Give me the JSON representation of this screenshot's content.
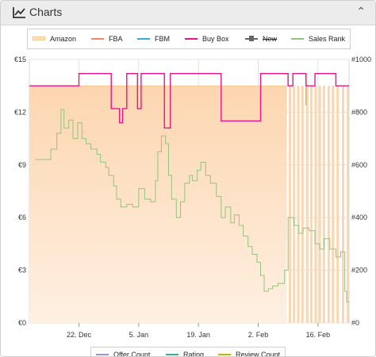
{
  "header": {
    "title": "Charts",
    "icon": "line-chart-icon",
    "collapse_icon": "chevron-up-icon"
  },
  "legend": [
    {
      "label": "Amazon",
      "color": "#f8c890",
      "style": "box"
    },
    {
      "label": "FBA",
      "color": "#f4866a",
      "style": "line"
    },
    {
      "label": "FBM",
      "color": "#3aa9e0",
      "style": "line"
    },
    {
      "label": "Buy Box",
      "color": "#e8158a",
      "style": "line"
    },
    {
      "label": "New",
      "color": "#666666",
      "style": "marker",
      "disabled": true
    },
    {
      "label": "Sales Rank",
      "color": "#93c47d",
      "style": "line"
    }
  ],
  "legend_bottom": [
    {
      "label": "Offer Count",
      "color": "#9b8fd6"
    },
    {
      "label": "Rating",
      "color": "#3aa9a0"
    },
    {
      "label": "Review Count",
      "color": "#c8b400"
    }
  ],
  "chart_data": {
    "type": "line",
    "y_left": {
      "ticks": [
        "€0",
        "€3",
        "€6",
        "€9",
        "€12",
        "€15"
      ],
      "range": [
        0,
        15
      ]
    },
    "y_right": {
      "ticks": [
        "#0",
        "#200",
        "#400",
        "#600",
        "#800",
        "#1000"
      ],
      "range": [
        0,
        1000
      ]
    },
    "x_ticks": [
      {
        "label": "22. Dec",
        "t": 5.0
      },
      {
        "label": "5. Jan",
        "t": 15.0
      },
      {
        "label": "19. Jan",
        "t": 25.0
      },
      {
        "label": "2. Feb",
        "t": 35.0
      },
      {
        "label": "16. Feb",
        "t": 45.0
      }
    ],
    "x_range": [
      -3.3,
      50.2
    ],
    "series": [
      {
        "name": "Buy Box",
        "color": "#e8158a",
        "points": [
          [
            -3.3,
            13.5
          ],
          [
            5.0,
            13.5
          ],
          [
            5.0,
            14.2
          ],
          [
            10.4,
            14.2
          ],
          [
            10.4,
            12.2
          ],
          [
            11.8,
            12.2
          ],
          [
            11.8,
            11.4
          ],
          [
            12.3,
            11.4
          ],
          [
            12.3,
            12.2
          ],
          [
            13.0,
            12.2
          ],
          [
            13.0,
            14.2
          ],
          [
            14.8,
            14.2
          ],
          [
            14.8,
            12.2
          ],
          [
            15.4,
            12.2
          ],
          [
            15.4,
            14.2
          ],
          [
            19.3,
            14.2
          ],
          [
            19.3,
            11.1
          ],
          [
            20.3,
            11.1
          ],
          [
            20.3,
            14.2
          ],
          [
            28.8,
            14.2
          ],
          [
            28.8,
            11.5
          ],
          [
            35.4,
            11.5
          ],
          [
            35.4,
            14.2
          ],
          [
            40.0,
            14.2
          ],
          [
            40.0,
            13.5
          ],
          [
            40.8,
            13.5
          ],
          [
            40.8,
            14.2
          ],
          [
            43.0,
            14.2
          ],
          [
            43.0,
            13.5
          ],
          [
            44.5,
            13.5
          ],
          [
            44.5,
            14.2
          ],
          [
            48.0,
            14.2
          ],
          [
            48.0,
            13.5
          ],
          [
            50.2,
            13.5
          ]
        ]
      },
      {
        "name": "Sales Rank",
        "color": "#93c47d",
        "points": [
          [
            -2.3,
            620
          ],
          [
            0.3,
            620
          ],
          [
            0.3,
            660
          ],
          [
            1.3,
            660
          ],
          [
            1.3,
            720
          ],
          [
            2.0,
            720
          ],
          [
            2.0,
            810
          ],
          [
            2.5,
            810
          ],
          [
            2.5,
            740
          ],
          [
            3.3,
            740
          ],
          [
            3.3,
            770
          ],
          [
            4.0,
            770
          ],
          [
            4.0,
            700
          ],
          [
            4.8,
            700
          ],
          [
            4.8,
            760
          ],
          [
            5.5,
            760
          ],
          [
            5.5,
            700
          ],
          [
            6.2,
            700
          ],
          [
            6.2,
            680
          ],
          [
            7.0,
            680
          ],
          [
            7.0,
            660
          ],
          [
            8.0,
            660
          ],
          [
            8.0,
            640
          ],
          [
            8.6,
            640
          ],
          [
            8.6,
            610
          ],
          [
            9.5,
            610
          ],
          [
            9.5,
            590
          ],
          [
            10.0,
            590
          ],
          [
            10.0,
            560
          ],
          [
            10.8,
            560
          ],
          [
            10.8,
            520
          ],
          [
            11.3,
            520
          ],
          [
            11.3,
            470
          ],
          [
            12.0,
            470
          ],
          [
            12.0,
            440
          ],
          [
            13.0,
            440
          ],
          [
            13.0,
            450
          ],
          [
            14.0,
            450
          ],
          [
            14.0,
            440
          ],
          [
            15.0,
            440
          ],
          [
            15.0,
            510
          ],
          [
            16.0,
            510
          ],
          [
            16.0,
            470
          ],
          [
            17.0,
            470
          ],
          [
            17.0,
            460
          ],
          [
            17.8,
            460
          ],
          [
            17.8,
            540
          ],
          [
            18.2,
            540
          ],
          [
            18.2,
            650
          ],
          [
            18.8,
            650
          ],
          [
            18.8,
            710
          ],
          [
            19.5,
            710
          ],
          [
            19.5,
            680
          ],
          [
            20.0,
            680
          ],
          [
            20.0,
            560
          ],
          [
            20.5,
            560
          ],
          [
            20.5,
            470
          ],
          [
            21.3,
            470
          ],
          [
            21.3,
            400
          ],
          [
            22.0,
            400
          ],
          [
            22.0,
            460
          ],
          [
            22.7,
            460
          ],
          [
            22.7,
            530
          ],
          [
            23.5,
            530
          ],
          [
            23.5,
            560
          ],
          [
            24.0,
            560
          ],
          [
            24.0,
            540
          ],
          [
            24.8,
            540
          ],
          [
            24.8,
            580
          ],
          [
            25.4,
            580
          ],
          [
            25.4,
            610
          ],
          [
            26.2,
            610
          ],
          [
            26.2,
            560
          ],
          [
            27.0,
            560
          ],
          [
            27.0,
            530
          ],
          [
            28.0,
            530
          ],
          [
            28.0,
            480
          ],
          [
            28.8,
            480
          ],
          [
            28.8,
            400
          ],
          [
            29.5,
            400
          ],
          [
            29.5,
            440
          ],
          [
            30.4,
            440
          ],
          [
            30.4,
            380
          ],
          [
            31.0,
            380
          ],
          [
            31.0,
            410
          ],
          [
            31.8,
            410
          ],
          [
            31.8,
            370
          ],
          [
            32.5,
            370
          ],
          [
            32.5,
            330
          ],
          [
            33.3,
            330
          ],
          [
            33.3,
            290
          ],
          [
            34.0,
            290
          ],
          [
            34.0,
            260
          ],
          [
            34.8,
            260
          ],
          [
            34.8,
            230
          ],
          [
            35.4,
            230
          ],
          [
            35.4,
            180
          ],
          [
            36.0,
            180
          ],
          [
            36.0,
            120
          ],
          [
            36.7,
            120
          ],
          [
            36.7,
            130
          ],
          [
            37.4,
            130
          ],
          [
            37.4,
            140
          ],
          [
            38.3,
            140
          ],
          [
            38.3,
            150
          ],
          [
            39.4,
            150
          ],
          [
            39.4,
            200
          ],
          [
            40.0,
            200
          ],
          [
            40.0,
            400
          ],
          [
            41.0,
            400
          ],
          [
            41.0,
            370
          ],
          [
            41.8,
            370
          ],
          [
            41.8,
            340
          ],
          [
            42.5,
            340
          ],
          [
            42.5,
            360
          ],
          [
            43.5,
            360
          ],
          [
            43.5,
            350
          ],
          [
            44.5,
            350
          ],
          [
            44.5,
            300
          ],
          [
            45.3,
            300
          ],
          [
            45.3,
            280
          ],
          [
            46.0,
            280
          ],
          [
            46.0,
            320
          ],
          [
            47.0,
            320
          ],
          [
            47.0,
            280
          ],
          [
            48.0,
            280
          ],
          [
            48.0,
            250
          ],
          [
            48.8,
            250
          ],
          [
            48.8,
            270
          ],
          [
            49.5,
            270
          ],
          [
            49.5,
            120
          ],
          [
            49.8,
            120
          ],
          [
            49.8,
            80
          ],
          [
            50.2,
            80
          ]
        ]
      },
      {
        "name": "Amazon",
        "color": "#f8c890",
        "points": [
          [
            -3.3,
            13.5
          ],
          [
            39.8,
            13.5
          ]
        ]
      }
    ],
    "amazon_stripes": [
      40.3,
      41.0,
      41.7,
      42.4,
      43.2,
      43.9,
      44.6,
      45.3,
      46.0,
      46.8,
      47.5,
      48.3,
      49.2,
      50.0
    ],
    "amazon_spike": {
      "t": 43.0,
      "from": 14.2,
      "to": 12.4
    },
    "grid": true,
    "legend_position": "top"
  }
}
